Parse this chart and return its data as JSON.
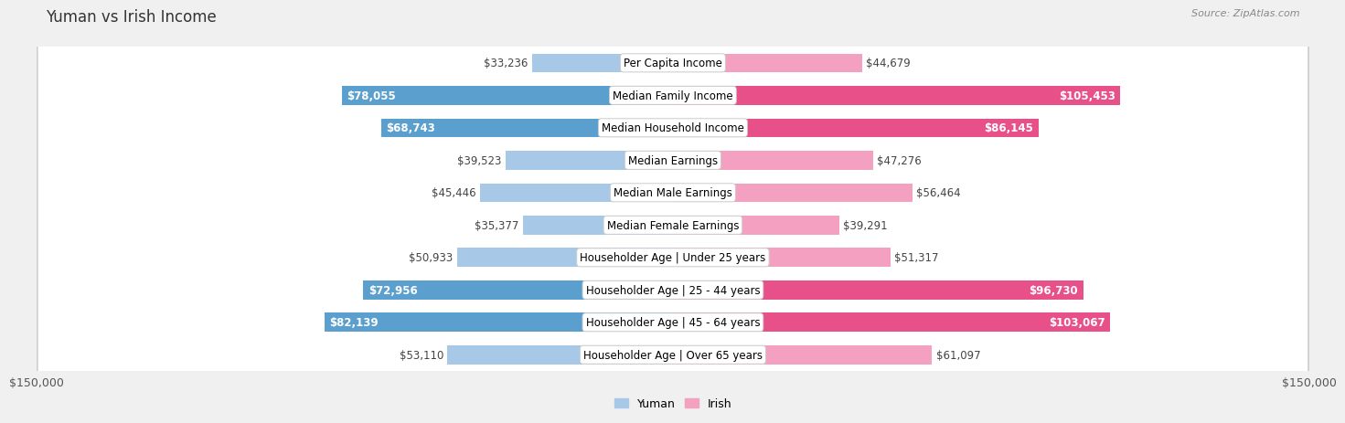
{
  "title": "Yuman vs Irish Income",
  "source": "Source: ZipAtlas.com",
  "categories": [
    "Per Capita Income",
    "Median Family Income",
    "Median Household Income",
    "Median Earnings",
    "Median Male Earnings",
    "Median Female Earnings",
    "Householder Age | Under 25 years",
    "Householder Age | 25 - 44 years",
    "Householder Age | 45 - 64 years",
    "Householder Age | Over 65 years"
  ],
  "yuman_values": [
    33236,
    78055,
    68743,
    39523,
    45446,
    35377,
    50933,
    72956,
    82139,
    53110
  ],
  "irish_values": [
    44679,
    105453,
    86145,
    47276,
    56464,
    39291,
    51317,
    96730,
    103067,
    61097
  ],
  "yuman_color_light": "#a8c8e8",
  "yuman_color_dark": "#5b9fce",
  "irish_color_light": "#f4a0c0",
  "irish_color_dark": "#e8508a",
  "max_value": 150000,
  "bg_color": "#f0f0f0",
  "row_bg_color": "#ffffff",
  "row_border_color": "#d0d0d0",
  "title_color": "#333333",
  "value_color": "#444444",
  "label_fontsize": 8.5,
  "title_fontsize": 12,
  "source_fontsize": 8,
  "legend_yuman": "Yuman",
  "legend_irish": "Irish",
  "yuman_threshold": 65000,
  "irish_threshold": 85000
}
